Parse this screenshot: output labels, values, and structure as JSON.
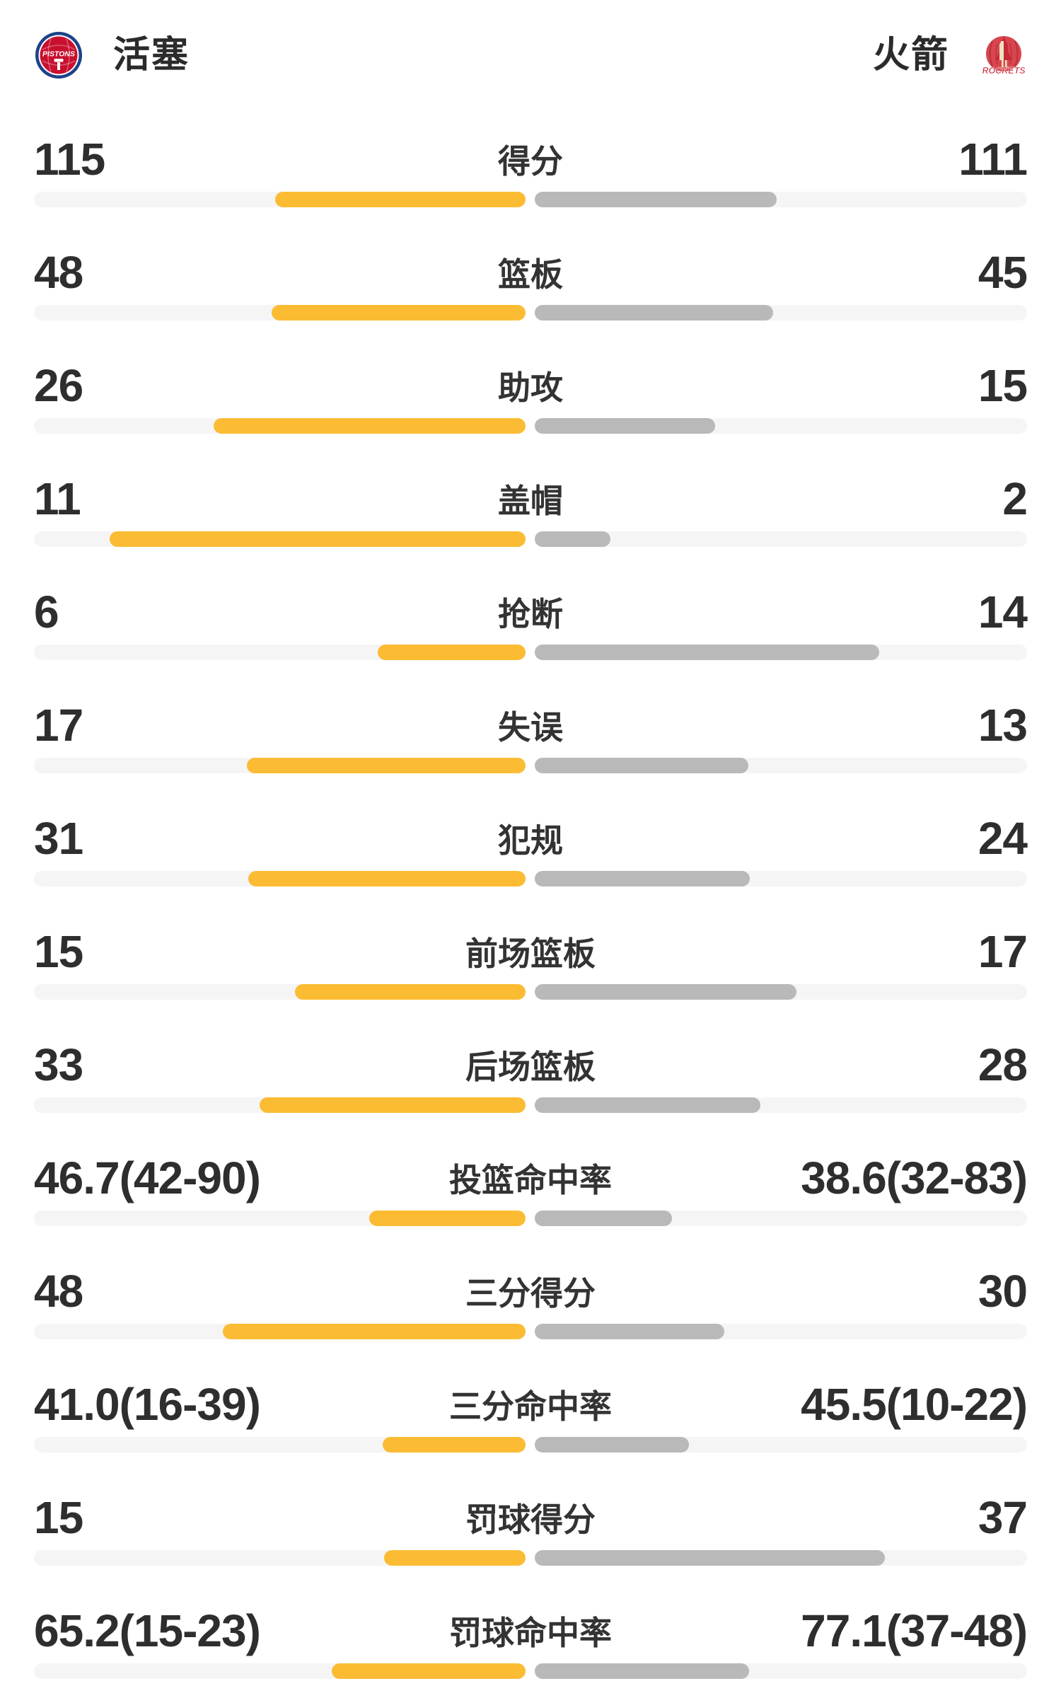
{
  "header": {
    "left_team": {
      "name": "活塞",
      "logo_label": "PISTONS"
    },
    "right_team": {
      "name": "火箭",
      "logo_label": "ROCKETS"
    }
  },
  "colors": {
    "left_bar": "#FBBC34",
    "right_bar": "#B9B9B9",
    "bar_track": "#F5F5F6",
    "value_text": "#2E2E2E",
    "label_text": "#333333",
    "pistons_blue": "#1D428A",
    "pistons_red": "#C8102E",
    "rockets_red": "#D9454E",
    "rockets_crimson": "#C41F2E",
    "rockets_cream": "#EFE2C2"
  },
  "chart_data": {
    "type": "bar",
    "layout": "paired horizontal comparison bars; left value left-aligned, right value right-aligned, stat label centered; left fill grows leftward from center, right fill grows rightward from center",
    "left_series": "活塞",
    "right_series": "火箭",
    "fill_rule": "count rows: value/(left+right) of track width; percentage rows: made/(made+attempts)",
    "rows": [
      {
        "label": "得分",
        "left": {
          "value": 115
        },
        "right": {
          "value": 111
        }
      },
      {
        "label": "篮板",
        "left": {
          "value": 48
        },
        "right": {
          "value": 45
        }
      },
      {
        "label": "助攻",
        "left": {
          "value": 26
        },
        "right": {
          "value": 15
        }
      },
      {
        "label": "盖帽",
        "left": {
          "value": 11
        },
        "right": {
          "value": 2
        }
      },
      {
        "label": "抢断",
        "left": {
          "value": 6
        },
        "right": {
          "value": 14
        }
      },
      {
        "label": "失误",
        "left": {
          "value": 17
        },
        "right": {
          "value": 13
        }
      },
      {
        "label": "犯规",
        "left": {
          "value": 31
        },
        "right": {
          "value": 24
        }
      },
      {
        "label": "前场篮板",
        "left": {
          "value": 15
        },
        "right": {
          "value": 17
        }
      },
      {
        "label": "后场篮板",
        "left": {
          "value": 33
        },
        "right": {
          "value": 28
        }
      },
      {
        "label": "投篮命中率",
        "left": {
          "pct": "46.7",
          "made": 42,
          "att": 90
        },
        "right": {
          "pct": "38.6",
          "made": 32,
          "att": 83
        }
      },
      {
        "label": "三分得分",
        "left": {
          "value": 48
        },
        "right": {
          "value": 30
        }
      },
      {
        "label": "三分命中率",
        "left": {
          "pct": "41.0",
          "made": 16,
          "att": 39
        },
        "right": {
          "pct": "45.5",
          "made": 10,
          "att": 22
        }
      },
      {
        "label": "罚球得分",
        "left": {
          "value": 15
        },
        "right": {
          "value": 37
        }
      },
      {
        "label": "罚球命中率",
        "left": {
          "pct": "65.2",
          "made": 15,
          "att": 23
        },
        "right": {
          "pct": "77.1",
          "made": 37,
          "att": 48
        }
      }
    ]
  }
}
